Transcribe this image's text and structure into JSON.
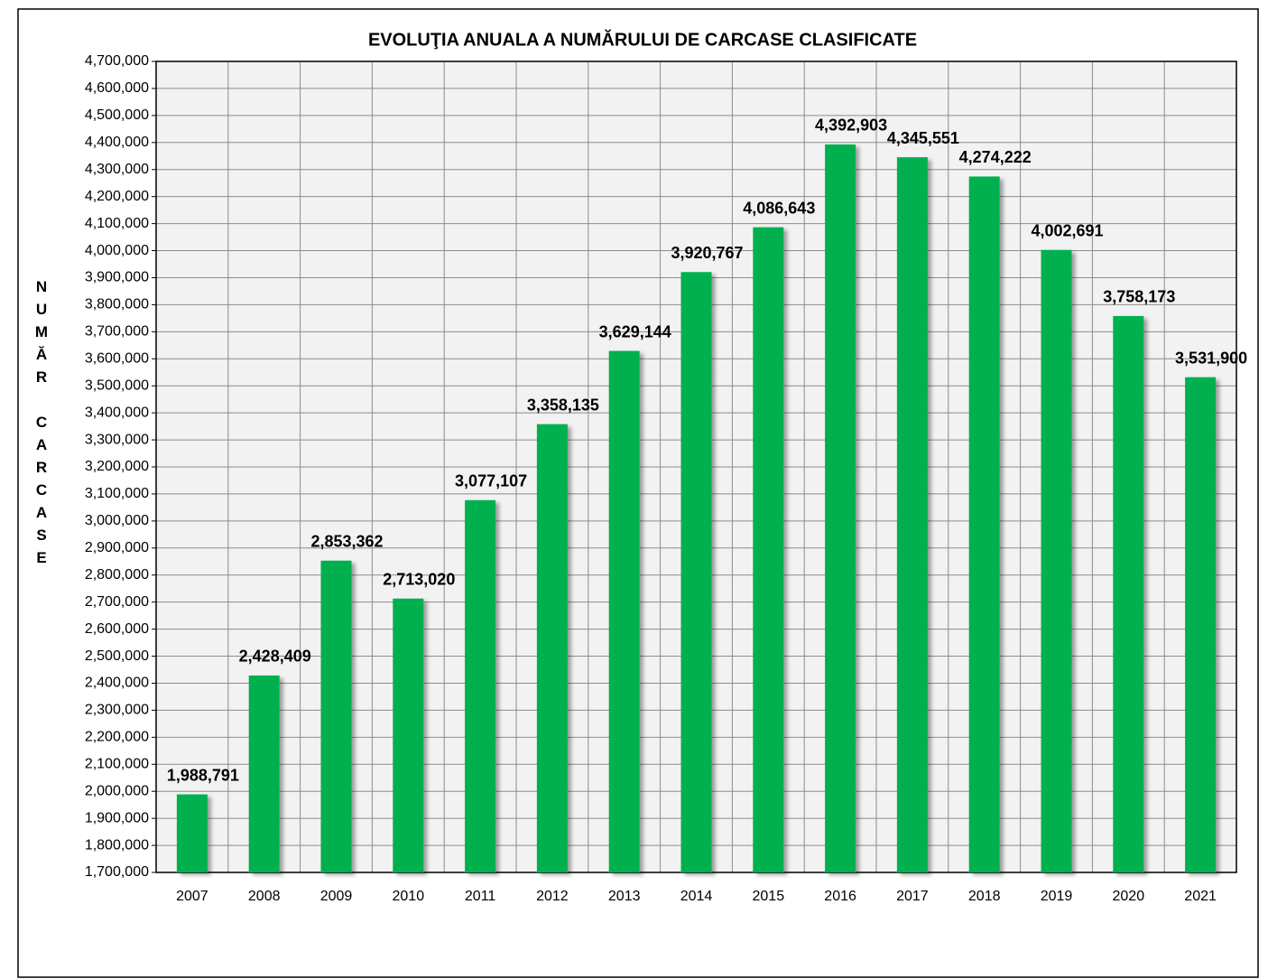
{
  "chart_data": {
    "type": "bar",
    "title": "EVOLUŢIA ANUALA  A NUMĂRULUI DE CARCASE CLASIFICATE",
    "y_label": "NUMĂR CARCASE",
    "categories": [
      "2007",
      "2008",
      "2009",
      "2010",
      "2011",
      "2012",
      "2013",
      "2014",
      "2015",
      "2016",
      "2017",
      "2018",
      "2019",
      "2020",
      "2021"
    ],
    "values": [
      1988791,
      2428409,
      2853362,
      2713020,
      3077107,
      3358135,
      3629144,
      3920767,
      4086643,
      4392903,
      4345551,
      4274222,
      4002691,
      3758173,
      3531900
    ],
    "value_labels": [
      "1,988,791",
      "2,428,409",
      "2,853,362",
      "2,713,020",
      "3,077,107",
      "3,358,135",
      "3,629,144",
      "3,920,767",
      "4,086,643",
      "4,392,903",
      "4,345,551",
      "4,274,222",
      "4,002,691",
      "3,758,173",
      "3,531,900"
    ],
    "color": "#00b050",
    "ylim": [
      1700000,
      4700000
    ],
    "yticks": [
      {
        "value": 1700000,
        "label": "1,700,000"
      },
      {
        "value": 1800000,
        "label": "1,800,000"
      },
      {
        "value": 1900000,
        "label": "1,900,000"
      },
      {
        "value": 2000000,
        "label": "2,000,000"
      },
      {
        "value": 2100000,
        "label": "2,100,000"
      },
      {
        "value": 2200000,
        "label": "2,200,000"
      },
      {
        "value": 2300000,
        "label": "2,300,000"
      },
      {
        "value": 2400000,
        "label": "2,400,000"
      },
      {
        "value": 2500000,
        "label": "2,500,000"
      },
      {
        "value": 2600000,
        "label": "2,600,000"
      },
      {
        "value": 2700000,
        "label": "2,700,000"
      },
      {
        "value": 2800000,
        "label": "2,800,000"
      },
      {
        "value": 2900000,
        "label": "2,900,000"
      },
      {
        "value": 3000000,
        "label": "3,000,000"
      },
      {
        "value": 3100000,
        "label": "3,100,000"
      },
      {
        "value": 3200000,
        "label": "3,200,000"
      },
      {
        "value": 3300000,
        "label": "3,300,000"
      },
      {
        "value": 3400000,
        "label": "3,400,000"
      },
      {
        "value": 3500000,
        "label": "3,500,000"
      },
      {
        "value": 3600000,
        "label": "3,600,000"
      },
      {
        "value": 3700000,
        "label": "3,700,000"
      },
      {
        "value": 3800000,
        "label": "3,800,000"
      },
      {
        "value": 3900000,
        "label": "3,900,000"
      },
      {
        "value": 4000000,
        "label": "4,000,000"
      },
      {
        "value": 4100000,
        "label": "4,100,000"
      },
      {
        "value": 4200000,
        "label": "4,200,000"
      },
      {
        "value": 4300000,
        "label": "4,300,000"
      },
      {
        "value": 4400000,
        "label": "4,400,000"
      },
      {
        "value": 4500000,
        "label": "4,500,000"
      },
      {
        "value": 4600000,
        "label": "4,600,000"
      },
      {
        "value": 4700000,
        "label": "4,700,000"
      }
    ],
    "grid": true
  }
}
